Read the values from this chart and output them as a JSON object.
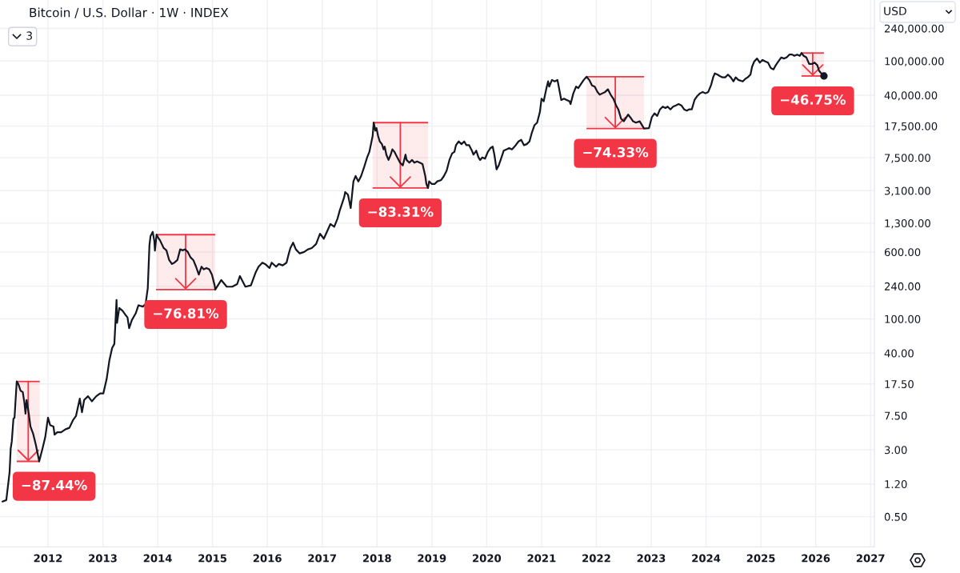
{
  "chart_data": {
    "type": "line",
    "title": "Bitcoin / U.S. Dollar · 1W · INDEX",
    "annotations": [
      "3",
      "USD"
    ],
    "log": true,
    "grid": true,
    "xlim": [
      2011.125,
      2027.07
    ],
    "xticks": [
      2012,
      2013,
      2014,
      2015,
      2016,
      2017,
      2018,
      2019,
      2020,
      2021,
      2022,
      2023,
      2024,
      2025,
      2026,
      2027
    ],
    "ylim": [
      0.223,
      513000
    ],
    "yticks": [
      {
        "value": 0.5,
        "label": "0.50"
      },
      {
        "value": 1.2,
        "label": "1.20"
      },
      {
        "value": 3,
        "label": "3.00"
      },
      {
        "value": 7.5,
        "label": "7.50"
      },
      {
        "value": 17.5,
        "label": "17.50"
      },
      {
        "value": 40,
        "label": "40.00"
      },
      {
        "value": 100,
        "label": "100.00"
      },
      {
        "value": 240,
        "label": "240.00"
      },
      {
        "value": 600,
        "label": "600.00"
      },
      {
        "value": 1300,
        "label": "1,300.00"
      },
      {
        "value": 3100,
        "label": "3,100.00"
      },
      {
        "value": 7500,
        "label": "7,500.00"
      },
      {
        "value": 17500,
        "label": "17,500.00"
      },
      {
        "value": 40000,
        "label": "40,000.00"
      },
      {
        "value": 100000,
        "label": "100,000.00"
      },
      {
        "value": 240000,
        "label": "240,000.00"
      }
    ],
    "bands": [
      {
        "axis": "x",
        "from": 2011.43,
        "to": 2011.85,
        "label": "−87.44%",
        "color": "#f23645"
      },
      {
        "axis": "x",
        "from": 2013.97,
        "to": 2015.05,
        "label": "−76.81%",
        "color": "#f23645"
      },
      {
        "axis": "x",
        "from": 2017.92,
        "to": 2018.93,
        "label": "−83.31%",
        "color": "#f23645"
      },
      {
        "axis": "x",
        "from": 2021.82,
        "to": 2022.87,
        "label": "−74.33%",
        "color": "#f23645"
      },
      {
        "axis": "x",
        "from": 2025.74,
        "to": 2026.15,
        "label": "−46.75%",
        "color": "#f23645"
      }
    ],
    "series": [
      {
        "color": "#131722",
        "x": [
          2011.17,
          2011.24,
          2011.3,
          2011.32,
          2011.34,
          2011.37,
          2011.39,
          2011.43,
          2011.46,
          2011.5,
          2011.54,
          2011.57,
          2011.59,
          2011.61,
          2011.65,
          2011.68,
          2011.73,
          2011.78,
          2011.84,
          2011.9,
          2011.95,
          2012.0,
          2012.04,
          2012.1,
          2012.12,
          2012.17,
          2012.24,
          2012.32,
          2012.39,
          2012.46,
          2012.51,
          2012.58,
          2012.62,
          2012.66,
          2012.73,
          2012.8,
          2012.88,
          2012.95,
          2013.01,
          2013.07,
          2013.12,
          2013.17,
          2013.21,
          2013.23,
          2013.25,
          2013.26,
          2013.3,
          2013.36,
          2013.41,
          2013.45,
          2013.48,
          2013.53,
          2013.6,
          2013.65,
          2013.73,
          2013.78,
          2013.8,
          2013.82,
          2013.85,
          2013.87,
          2013.91,
          2013.94,
          2013.95,
          2013.98,
          2014.02,
          2014.04,
          2014.11,
          2014.16,
          2014.21,
          2014.26,
          2014.31,
          2014.36,
          2014.41,
          2014.46,
          2014.5,
          2014.55,
          2014.6,
          2014.65,
          2014.7,
          2014.75,
          2014.8,
          2014.84,
          2014.89,
          2014.94,
          2014.99,
          2015.04,
          2015.05,
          2015.16,
          2015.26,
          2015.36,
          2015.45,
          2015.5,
          2015.6,
          2015.7,
          2015.79,
          2015.84,
          2015.91,
          2015.96,
          2016.04,
          2016.08,
          2016.16,
          2016.21,
          2016.28,
          2016.35,
          2016.38,
          2016.42,
          2016.47,
          2016.52,
          2016.59,
          2016.67,
          2016.74,
          2016.81,
          2016.89,
          2016.96,
          2017.03,
          2017.15,
          2017.22,
          2017.28,
          2017.32,
          2017.4,
          2017.42,
          2017.47,
          2017.49,
          2017.52,
          2017.57,
          2017.61,
          2017.66,
          2017.71,
          2017.76,
          2017.82,
          2017.86,
          2017.89,
          2017.92,
          2017.94,
          2017.97,
          2017.99,
          2018.02,
          2018.05,
          2018.09,
          2018.12,
          2018.14,
          2018.17,
          2018.21,
          2018.25,
          2018.28,
          2018.32,
          2018.37,
          2018.42,
          2018.47,
          2018.52,
          2018.54,
          2018.59,
          2018.64,
          2018.68,
          2018.73,
          2018.78,
          2018.83,
          2018.88,
          2018.9,
          2018.93,
          2018.95,
          2019.0,
          2019.05,
          2019.1,
          2019.17,
          2019.22,
          2019.27,
          2019.32,
          2019.37,
          2019.41,
          2019.44,
          2019.49,
          2019.54,
          2019.59,
          2019.63,
          2019.68,
          2019.73,
          2019.76,
          2019.81,
          2019.85,
          2019.88,
          2019.92,
          2019.97,
          2020.02,
          2020.07,
          2020.11,
          2020.14,
          2020.18,
          2020.22,
          2020.27,
          2020.31,
          2020.36,
          2020.41,
          2020.46,
          2020.53,
          2020.58,
          2020.63,
          2020.68,
          2020.73,
          2020.78,
          2020.82,
          2020.87,
          2020.92,
          2020.97,
          2021.0,
          2021.04,
          2021.09,
          2021.12,
          2021.14,
          2021.19,
          2021.24,
          2021.29,
          2021.31,
          2021.36,
          2021.41,
          2021.46,
          2021.51,
          2021.53,
          2021.58,
          2021.63,
          2021.67,
          2021.72,
          2021.77,
          2021.82,
          2021.87,
          2021.92,
          2021.97,
          2022.02,
          2022.06,
          2022.11,
          2022.16,
          2022.21,
          2022.26,
          2022.31,
          2022.36,
          2022.4,
          2022.45,
          2022.5,
          2022.58,
          2022.62,
          2022.67,
          2022.72,
          2022.79,
          2022.87,
          2022.96,
          2023.01,
          2023.06,
          2023.11,
          2023.16,
          2023.21,
          2023.26,
          2023.3,
          2023.35,
          2023.4,
          2023.45,
          2023.5,
          2023.55,
          2023.6,
          2023.65,
          2023.69,
          2023.74,
          2023.79,
          2023.84,
          2023.89,
          2023.94,
          2023.99,
          2024.04,
          2024.09,
          2024.13,
          2024.16,
          2024.21,
          2024.25,
          2024.3,
          2024.35,
          2024.4,
          2024.45,
          2024.5,
          2024.54,
          2024.59,
          2024.67,
          2024.72,
          2024.76,
          2024.81,
          2024.84,
          2024.88,
          2024.93,
          2024.98,
          2025.03,
          2025.08,
          2025.13,
          2025.18,
          2025.23,
          2025.27,
          2025.32,
          2025.37,
          2025.42,
          2025.47,
          2025.52,
          2025.57,
          2025.61,
          2025.66,
          2025.71,
          2025.74,
          2025.78,
          2025.83,
          2025.88,
          2025.93,
          2025.98,
          2026.03,
          2026.06,
          2026.1,
          2026.15
        ],
        "values": [
          0.75,
          0.78,
          1.65,
          3.1,
          3.75,
          6.9,
          7.1,
          18.7,
          17.5,
          14.6,
          14.1,
          10.6,
          7.9,
          11.4,
          7.9,
          5.6,
          4.6,
          3.4,
          2.2,
          3.1,
          4.2,
          7.1,
          5.8,
          5.6,
          4.5,
          4.8,
          4.8,
          5.2,
          5.4,
          6.7,
          7.4,
          11.8,
          8.2,
          11.4,
          12.6,
          11,
          12.6,
          13.6,
          13.6,
          20,
          33,
          46,
          51,
          90,
          166,
          90,
          134,
          124,
          112,
          104,
          78,
          97,
          116,
          144,
          139,
          149,
          185,
          229,
          716,
          920,
          1030,
          798,
          622,
          955,
          857,
          828,
          667,
          627,
          484,
          435,
          454,
          484,
          644,
          627,
          644,
          600,
          519,
          484,
          405,
          327,
          405,
          377,
          391,
          377,
          327,
          244,
          219,
          283,
          237,
          237,
          254,
          315,
          237,
          245,
          351,
          405,
          451,
          435,
          391,
          451,
          405,
          435,
          419,
          451,
          539,
          667,
          771,
          644,
          578,
          600,
          644,
          667,
          743,
          980,
          857,
          1270,
          1180,
          1470,
          1820,
          2590,
          2990,
          2790,
          2420,
          1950,
          3980,
          4590,
          3980,
          4590,
          5690,
          7570,
          8750,
          10800,
          13400,
          19200,
          15500,
          16600,
          13400,
          11600,
          10800,
          9380,
          10100,
          8150,
          7060,
          8150,
          9380,
          8750,
          7570,
          6570,
          6110,
          8150,
          7060,
          6570,
          7060,
          6570,
          6800,
          6570,
          6340,
          4590,
          3710,
          3330,
          3980,
          3710,
          3710,
          3980,
          4130,
          4590,
          5310,
          7060,
          8430,
          8750,
          10500,
          11600,
          10800,
          11600,
          10500,
          10500,
          9060,
          8150,
          9060,
          7570,
          7060,
          7570,
          7310,
          8750,
          9730,
          10100,
          8150,
          5490,
          6110,
          7570,
          9060,
          9380,
          9730,
          9380,
          10500,
          11600,
          12100,
          10500,
          10800,
          11600,
          14400,
          17900,
          19200,
          25500,
          36500,
          34000,
          48500,
          58000,
          50400,
          60300,
          58000,
          60300,
          52100,
          35200,
          36500,
          35200,
          34000,
          31600,
          42100,
          50400,
          48500,
          54100,
          60300,
          65600,
          60300,
          52100,
          50400,
          43700,
          40600,
          42100,
          43700,
          46900,
          40600,
          36500,
          30500,
          27400,
          21400,
          19900,
          23800,
          22100,
          19900,
          19200,
          19900,
          16400,
          16600,
          22100,
          24600,
          23000,
          27400,
          29500,
          28400,
          29500,
          27400,
          29500,
          30500,
          31600,
          30500,
          27400,
          26500,
          27400,
          27400,
          35200,
          39200,
          42100,
          43700,
          42100,
          43700,
          52100,
          64600,
          71900,
          69500,
          67000,
          64600,
          64600,
          69500,
          64600,
          58000,
          64600,
          60300,
          58000,
          62400,
          64600,
          69500,
          86100,
          99100,
          107000,
          95900,
          103000,
          99100,
          95900,
          83000,
          80000,
          89100,
          99100,
          110000,
          107000,
          110000,
          119000,
          119000,
          115000,
          119000,
          115000,
          124000,
          115000,
          110000,
          92500,
          92500,
          95900,
          89100,
          77400,
          71900,
          67000
        ]
      },
      {
        "type": "scatter",
        "color": "#131722",
        "marker": "circle",
        "x": [
          2026.15
        ],
        "values": [
          67000
        ]
      }
    ]
  }
}
